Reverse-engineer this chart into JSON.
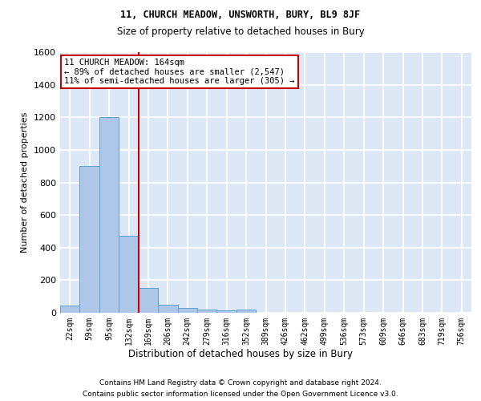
{
  "title1": "11, CHURCH MEADOW, UNSWORTH, BURY, BL9 8JF",
  "title2": "Size of property relative to detached houses in Bury",
  "xlabel": "Distribution of detached houses by size in Bury",
  "ylabel": "Number of detached properties",
  "footer1": "Contains HM Land Registry data © Crown copyright and database right 2024.",
  "footer2": "Contains public sector information licensed under the Open Government Licence v3.0.",
  "bar_color": "#aec6e8",
  "bar_edge_color": "#5a9fd4",
  "background_color": "#dce8f5",
  "grid_color": "#ffffff",
  "categories": [
    "22sqm",
    "59sqm",
    "95sqm",
    "132sqm",
    "169sqm",
    "206sqm",
    "242sqm",
    "279sqm",
    "316sqm",
    "352sqm",
    "389sqm",
    "426sqm",
    "462sqm",
    "499sqm",
    "536sqm",
    "573sqm",
    "609sqm",
    "646sqm",
    "683sqm",
    "719sqm",
    "756sqm"
  ],
  "values": [
    45,
    900,
    1200,
    475,
    155,
    50,
    30,
    20,
    15,
    20,
    0,
    0,
    0,
    0,
    0,
    0,
    0,
    0,
    0,
    0,
    0
  ],
  "ylim": [
    0,
    1600
  ],
  "yticks": [
    0,
    200,
    400,
    600,
    800,
    1000,
    1200,
    1400,
    1600
  ],
  "property_line_x": 3.5,
  "property_line_color": "#cc0000",
  "annotation_line1": "11 CHURCH MEADOW: 164sqm",
  "annotation_line2": "← 89% of detached houses are smaller (2,547)",
  "annotation_line3": "11% of semi-detached houses are larger (305) →",
  "annotation_box_color": "#ffffff",
  "annotation_box_edge_color": "#cc0000"
}
